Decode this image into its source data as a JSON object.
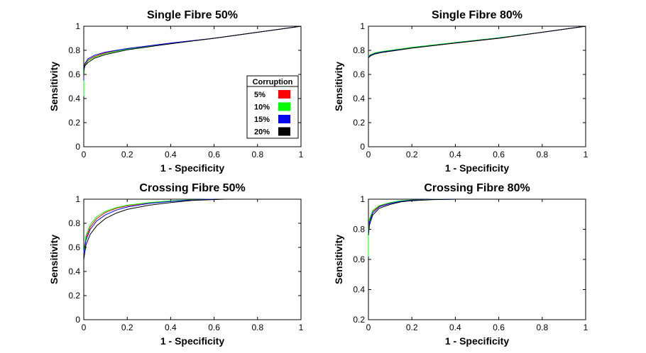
{
  "figure": {
    "legend_title": "Corruption",
    "legend_entries": [
      {
        "label": "5%",
        "color": "#ff0000"
      },
      {
        "label": "10%",
        "color": "#00ff00"
      },
      {
        "label": "15%",
        "color": "#0000ff"
      },
      {
        "label": "20%",
        "color": "#000000"
      }
    ]
  },
  "chart_data": [
    {
      "type": "line",
      "title": "Single Fibre 50%",
      "xlabel": "1 - Specificity",
      "ylabel": "Sensitivity",
      "xlim": [
        0,
        1
      ],
      "ylim": [
        0,
        1
      ],
      "xticks": [
        "0",
        "0.2",
        "0.4",
        "0.6",
        "0.8",
        "1"
      ],
      "yticks": [
        "0",
        "0.2",
        "0.4",
        "0.6",
        "0.8",
        "1"
      ],
      "legend": "bottom-right",
      "series": [
        {
          "name": "5%",
          "color": "#ff0000",
          "x": [
            0,
            0,
            0.005,
            0.02,
            0.05,
            0.1,
            0.2,
            0.4,
            0.6,
            0.8,
            1
          ],
          "y": [
            0.5,
            0.62,
            0.68,
            0.72,
            0.75,
            0.78,
            0.815,
            0.86,
            0.9,
            0.95,
            1
          ]
        },
        {
          "name": "10%",
          "color": "#00ff00",
          "x": [
            0,
            0,
            0.005,
            0.02,
            0.05,
            0.1,
            0.2,
            0.4,
            0.6,
            0.8,
            1
          ],
          "y": [
            0.42,
            0.6,
            0.67,
            0.715,
            0.745,
            0.775,
            0.81,
            0.855,
            0.9,
            0.95,
            1
          ]
        },
        {
          "name": "15%",
          "color": "#0000ff",
          "x": [
            0,
            0,
            0.005,
            0.02,
            0.05,
            0.1,
            0.2,
            0.4,
            0.6,
            0.8,
            1
          ],
          "y": [
            0.55,
            0.63,
            0.69,
            0.73,
            0.76,
            0.785,
            0.815,
            0.86,
            0.9,
            0.95,
            1
          ]
        },
        {
          "name": "20%",
          "color": "#000000",
          "x": [
            0,
            0,
            0.005,
            0.02,
            0.05,
            0.1,
            0.2,
            0.4,
            0.6,
            0.8,
            1
          ],
          "y": [
            0.58,
            0.64,
            0.67,
            0.7,
            0.735,
            0.765,
            0.805,
            0.855,
            0.9,
            0.95,
            1
          ]
        }
      ]
    },
    {
      "type": "line",
      "title": "Single Fibre 80%",
      "xlabel": "1 - Specificity",
      "ylabel": "Sensitivity",
      "xlim": [
        0,
        1
      ],
      "ylim": [
        0,
        1
      ],
      "xticks": [
        "0",
        "0.2",
        "0.4",
        "0.6",
        "0.8",
        "1"
      ],
      "yticks": [
        "0",
        "0.2",
        "0.4",
        "0.6",
        "0.8",
        "1"
      ],
      "series": [
        {
          "name": "5%",
          "color": "#ff0000",
          "x": [
            0,
            0,
            0.01,
            0.03,
            0.06,
            0.1,
            0.2,
            0.4,
            0.6,
            0.8,
            1
          ],
          "y": [
            0.72,
            0.74,
            0.76,
            0.775,
            0.785,
            0.795,
            0.82,
            0.86,
            0.9,
            0.95,
            1
          ]
        },
        {
          "name": "10%",
          "color": "#00ff00",
          "x": [
            0,
            0,
            0.01,
            0.03,
            0.06,
            0.1,
            0.2,
            0.4,
            0.6,
            0.8,
            1
          ],
          "y": [
            0.73,
            0.75,
            0.765,
            0.78,
            0.79,
            0.8,
            0.825,
            0.865,
            0.905,
            0.95,
            1
          ]
        },
        {
          "name": "15%",
          "color": "#0000ff",
          "x": [
            0,
            0,
            0.01,
            0.03,
            0.06,
            0.1,
            0.2,
            0.4,
            0.6,
            0.8,
            1
          ],
          "y": [
            0.73,
            0.745,
            0.76,
            0.775,
            0.785,
            0.795,
            0.82,
            0.862,
            0.902,
            0.95,
            1
          ]
        },
        {
          "name": "20%",
          "color": "#000000",
          "x": [
            0,
            0,
            0.01,
            0.03,
            0.06,
            0.1,
            0.2,
            0.4,
            0.6,
            0.8,
            1
          ],
          "y": [
            0.72,
            0.74,
            0.755,
            0.77,
            0.782,
            0.792,
            0.818,
            0.86,
            0.9,
            0.95,
            1
          ]
        }
      ]
    },
    {
      "type": "line",
      "title": "Crossing Fibre 50%",
      "xlabel": "1 - Specificity",
      "ylabel": "Sensitivity",
      "xlim": [
        0,
        1
      ],
      "ylim": [
        0,
        1
      ],
      "xticks": [
        "0",
        "0.2",
        "0.4",
        "0.6",
        "0.8",
        "1"
      ],
      "yticks": [
        "0",
        "0.2",
        "0.4",
        "0.6",
        "0.8",
        "1"
      ],
      "series": [
        {
          "name": "5%",
          "color": "#ff0000",
          "x": [
            0,
            0.01,
            0.03,
            0.06,
            0.1,
            0.15,
            0.2,
            0.3,
            0.4,
            0.5,
            0.6
          ],
          "y": [
            0.55,
            0.68,
            0.77,
            0.84,
            0.89,
            0.925,
            0.945,
            0.97,
            0.985,
            0.995,
            1
          ]
        },
        {
          "name": "10%",
          "color": "#00ff00",
          "x": [
            0,
            0.01,
            0.03,
            0.06,
            0.1,
            0.15,
            0.2,
            0.3,
            0.4,
            0.5,
            0.6
          ],
          "y": [
            0.56,
            0.7,
            0.79,
            0.855,
            0.9,
            0.93,
            0.95,
            0.972,
            0.986,
            0.995,
            1
          ]
        },
        {
          "name": "15%",
          "color": "#0000ff",
          "x": [
            0,
            0.01,
            0.03,
            0.06,
            0.1,
            0.15,
            0.2,
            0.3,
            0.4,
            0.5,
            0.6
          ],
          "y": [
            0.55,
            0.66,
            0.75,
            0.82,
            0.87,
            0.91,
            0.935,
            0.965,
            0.982,
            0.993,
            1
          ]
        },
        {
          "name": "20%",
          "color": "#000000",
          "x": [
            0,
            0.01,
            0.03,
            0.06,
            0.1,
            0.15,
            0.2,
            0.3,
            0.4,
            0.5,
            0.65
          ],
          "y": [
            0.5,
            0.62,
            0.71,
            0.78,
            0.84,
            0.885,
            0.915,
            0.95,
            0.972,
            0.99,
            1
          ]
        }
      ]
    },
    {
      "type": "line",
      "title": "Crossing Fibre 80%",
      "xlabel": "1 - Specificity",
      "ylabel": "Sensitivity",
      "xlim": [
        0,
        1
      ],
      "ylim": [
        0.2,
        1
      ],
      "xticks": [
        "0",
        "0.2",
        "0.4",
        "0.6",
        "0.8",
        "1"
      ],
      "yticks": [
        "0.2",
        "0.4",
        "0.6",
        "0.8",
        "1"
      ],
      "series": [
        {
          "name": "5%",
          "color": "#ff0000",
          "x": [
            0,
            0.005,
            0.02,
            0.05,
            0.1,
            0.15,
            0.2,
            0.3,
            0.4
          ],
          "y": [
            0.8,
            0.86,
            0.92,
            0.955,
            0.975,
            0.988,
            0.994,
            0.999,
            1
          ]
        },
        {
          "name": "10%",
          "color": "#00ff00",
          "x": [
            0,
            0,
            0.005,
            0.02,
            0.05,
            0.1,
            0.15,
            0.2,
            0.3,
            0.4
          ],
          "y": [
            0.62,
            0.8,
            0.87,
            0.925,
            0.958,
            0.978,
            0.99,
            0.995,
            0.999,
            1
          ]
        },
        {
          "name": "15%",
          "color": "#0000ff",
          "x": [
            0,
            0.005,
            0.02,
            0.05,
            0.1,
            0.15,
            0.2,
            0.3,
            0.4
          ],
          "y": [
            0.78,
            0.85,
            0.91,
            0.95,
            0.972,
            0.986,
            0.993,
            0.998,
            1
          ]
        },
        {
          "name": "20%",
          "color": "#000000",
          "x": [
            0,
            0.005,
            0.02,
            0.05,
            0.1,
            0.15,
            0.2,
            0.3,
            0.4
          ],
          "y": [
            0.76,
            0.83,
            0.895,
            0.94,
            0.965,
            0.982,
            0.99,
            0.997,
            1
          ]
        }
      ]
    }
  ]
}
